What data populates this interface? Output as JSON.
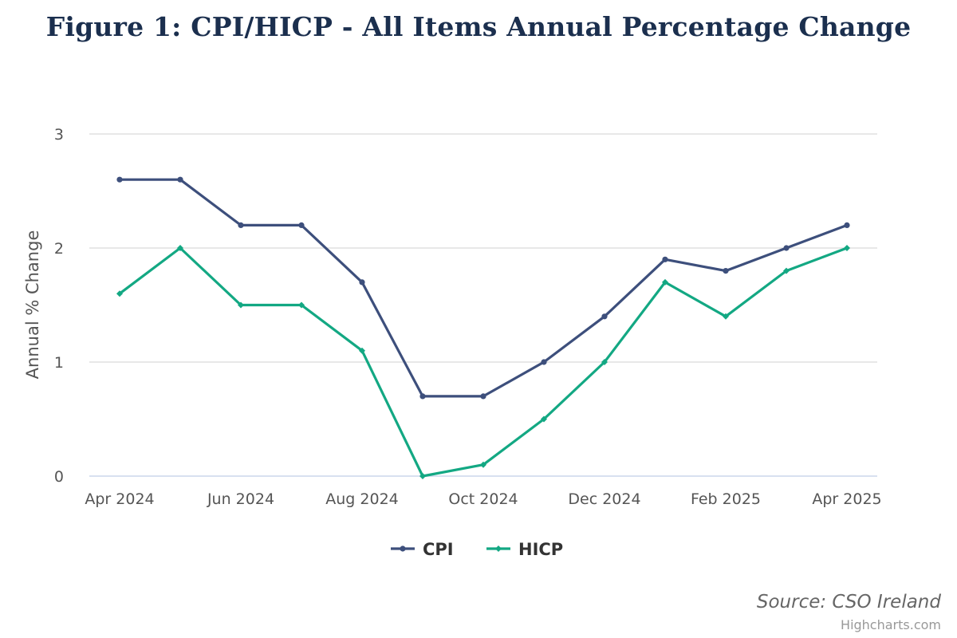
{
  "chart_data": {
    "type": "line",
    "title": "Figure 1: CPI/HICP - All Items Annual Percentage Change",
    "xlabel": "",
    "ylabel": "Annual % Change",
    "categories": [
      "Apr 2024",
      "May 2024",
      "Jun 2024",
      "Jul 2024",
      "Aug 2024",
      "Sep 2024",
      "Oct 2024",
      "Nov 2024",
      "Dec 2024",
      "Jan 2025",
      "Feb 2025",
      "Mar 2025",
      "Apr 2025"
    ],
    "x_tick_labels": [
      "Apr 2024",
      "Jun 2024",
      "Aug 2024",
      "Oct 2024",
      "Dec 2024",
      "Feb 2025",
      "Apr 2025"
    ],
    "y_ticks": [
      0,
      1,
      2,
      3
    ],
    "ylim": [
      0,
      3
    ],
    "grid": true,
    "legend_position": "bottom-center",
    "series": [
      {
        "name": "CPI",
        "color": "#3d4f7c",
        "values": [
          2.6,
          2.6,
          2.2,
          2.2,
          1.7,
          0.7,
          0.7,
          1.0,
          1.4,
          1.9,
          1.8,
          2.0,
          2.2
        ]
      },
      {
        "name": "HICP",
        "color": "#13a883",
        "values": [
          1.6,
          2.0,
          1.5,
          1.5,
          1.1,
          0.0,
          0.1,
          0.5,
          1.0,
          1.7,
          1.4,
          1.8,
          2.0
        ]
      }
    ]
  },
  "source": "Source: CSO Ireland",
  "credits": "Highcharts.com"
}
